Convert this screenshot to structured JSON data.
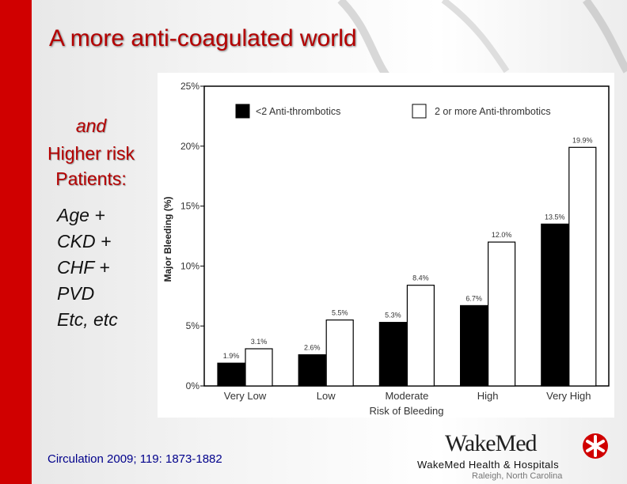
{
  "slide": {
    "title": "A more anti-coagulated world",
    "subtitle_and": "and",
    "subtitle_line1": "Higher risk",
    "subtitle_line2": "Patients:",
    "risk_factors": [
      "Age +",
      "CKD +",
      "CHF +",
      "PVD",
      "Etc, etc"
    ],
    "citation": "Circulation 2009; 119: 1873-1882"
  },
  "logo": {
    "wordmark": "WakeMed",
    "org_name": "WakeMed Health & Hospitals",
    "location": "Raleigh, North Carolina",
    "accent_color": "#d00000"
  },
  "chart_data": {
    "type": "bar",
    "title": "",
    "xlabel": "Risk of Bleeding",
    "ylabel": "Major Bleeding (%)",
    "ylim": [
      0,
      25
    ],
    "yticks": [
      0,
      5,
      10,
      15,
      20,
      25
    ],
    "ytick_labels": [
      "0%",
      "5%",
      "10%",
      "15%",
      "20%",
      "25%"
    ],
    "categories": [
      "Very Low",
      "Low",
      "Moderate",
      "High",
      "Very High"
    ],
    "series": [
      {
        "name": "<2 Anti-thrombotics",
        "color": "#000000",
        "values": [
          1.9,
          2.6,
          5.3,
          6.7,
          13.5
        ],
        "labels": [
          "1.9%",
          "2.6%",
          "5.3%",
          "6.7%",
          "13.5%"
        ]
      },
      {
        "name": "2 or more Anti-thrombotics",
        "color": "#ffffff",
        "values": [
          3.1,
          5.5,
          8.4,
          12.0,
          19.9
        ],
        "labels": [
          "3.1%",
          "5.5%",
          "8.4%",
          "12.0%",
          "19.9%"
        ]
      }
    ],
    "legend_position": "top",
    "grid": false
  }
}
